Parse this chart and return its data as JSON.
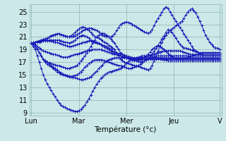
{
  "xlabel": "Température (°c)",
  "background_color": "#cce8e8",
  "line_color": "#1a1ab8",
  "grid_color": "#99bbbb",
  "x_tick_positions": [
    0,
    24,
    48,
    72,
    95
  ],
  "x_tick_labels": [
    "Lun",
    "Mar",
    "Mer",
    "Jeu",
    "V"
  ],
  "ylim": [
    8.5,
    26.2
  ],
  "xlim": [
    -1,
    96
  ],
  "y_ticks": [
    9,
    11,
    13,
    15,
    17,
    19,
    21,
    23,
    25
  ],
  "series": [
    [
      20.0,
      20.0,
      19.8,
      19.5,
      19.2,
      19.0,
      18.8,
      18.7,
      18.6,
      18.5,
      18.4,
      18.3,
      18.2,
      18.1,
      18.0,
      17.9,
      17.8,
      17.8,
      17.8,
      17.9,
      18.0,
      18.1,
      18.2,
      18.3,
      18.4,
      18.5,
      18.6,
      18.7,
      18.8,
      18.8,
      18.9,
      19.0,
      19.0,
      19.0,
      19.0,
      19.0,
      18.9,
      18.8,
      18.7,
      18.6,
      18.5,
      18.4,
      18.3,
      18.2,
      18.1,
      18.0,
      17.9,
      17.8,
      17.7,
      17.6,
      17.5,
      17.5,
      17.6,
      17.7,
      17.8,
      17.9,
      18.0,
      18.0,
      18.0,
      18.0,
      18.0,
      18.0,
      18.0,
      18.0,
      18.0,
      18.0,
      18.0,
      18.0,
      18.0,
      18.0,
      18.0,
      18.0,
      18.0,
      18.0,
      18.0,
      18.0,
      18.0,
      18.0,
      18.0,
      18.0,
      18.0,
      18.0,
      18.0,
      18.0,
      18.0,
      18.0,
      18.0,
      18.0,
      18.0,
      18.0,
      18.0,
      18.0,
      18.0,
      18.0,
      18.0,
      18.0
    ],
    [
      20.0,
      19.8,
      19.5,
      19.0,
      18.5,
      18.0,
      17.5,
      17.2,
      17.0,
      16.8,
      16.5,
      16.2,
      16.0,
      15.8,
      15.5,
      15.3,
      15.1,
      15.0,
      14.9,
      14.8,
      14.7,
      14.6,
      14.5,
      14.4,
      14.3,
      14.2,
      14.2,
      14.3,
      14.4,
      14.5,
      14.7,
      15.0,
      15.3,
      15.6,
      16.0,
      16.3,
      16.6,
      17.0,
      17.2,
      17.4,
      17.5,
      17.6,
      17.7,
      17.7,
      17.7,
      17.7,
      17.7,
      17.7,
      17.7,
      17.7,
      17.7,
      17.7,
      17.7,
      17.7,
      17.7,
      17.7,
      17.7,
      17.7,
      17.7,
      17.7,
      17.7,
      17.7,
      17.7,
      17.7,
      17.7,
      17.7,
      17.7,
      17.7,
      17.7,
      17.7,
      17.7,
      17.7,
      17.7,
      17.7,
      17.7,
      17.7,
      17.7,
      17.7,
      17.7,
      17.7,
      17.7,
      17.7,
      17.7,
      17.7,
      17.7,
      17.7,
      17.7,
      17.7,
      17.7,
      17.7,
      17.7,
      17.7,
      17.7,
      17.7,
      17.7,
      17.7
    ],
    [
      20.0,
      19.5,
      19.0,
      18.0,
      17.0,
      16.0,
      15.0,
      14.2,
      13.5,
      13.0,
      12.5,
      12.0,
      11.5,
      11.0,
      10.5,
      10.2,
      10.0,
      9.8,
      9.6,
      9.5,
      9.4,
      9.3,
      9.2,
      9.2,
      9.3,
      9.5,
      9.8,
      10.2,
      10.7,
      11.2,
      11.8,
      12.4,
      13.0,
      13.5,
      14.0,
      14.4,
      14.7,
      15.0,
      15.2,
      15.4,
      15.5,
      15.6,
      15.7,
      15.8,
      15.9,
      16.0,
      16.2,
      16.5,
      16.8,
      17.1,
      17.4,
      17.5,
      17.5,
      17.5,
      17.5,
      17.5,
      17.5,
      17.5,
      17.5,
      17.5,
      17.5,
      17.5,
      17.5,
      17.5,
      17.5,
      17.5,
      17.5,
      17.5,
      17.5,
      17.5,
      17.5,
      17.5,
      17.5,
      17.5,
      17.5,
      17.5,
      17.5,
      17.5,
      17.5,
      17.5,
      17.5,
      17.5,
      17.5,
      17.5,
      17.5,
      17.5,
      17.5,
      17.5,
      17.5,
      17.5,
      17.5,
      17.5,
      17.5,
      17.5,
      17.5,
      17.5
    ],
    [
      20.0,
      19.8,
      19.5,
      19.0,
      18.5,
      18.0,
      17.5,
      17.2,
      17.0,
      16.9,
      16.8,
      16.7,
      16.6,
      16.5,
      16.4,
      16.3,
      16.2,
      16.1,
      16.0,
      16.0,
      16.1,
      16.2,
      16.3,
      16.5,
      16.8,
      17.2,
      17.6,
      18.0,
      18.5,
      19.0,
      19.5,
      20.0,
      20.5,
      21.0,
      21.3,
      21.5,
      21.6,
      21.5,
      21.3,
      21.0,
      20.7,
      20.4,
      20.0,
      19.5,
      19.0,
      18.5,
      18.2,
      18.0,
      17.8,
      17.6,
      17.4,
      17.3,
      17.2,
      17.2,
      17.3,
      17.4,
      17.5,
      17.7,
      18.0,
      18.3,
      18.6,
      19.0,
      19.3,
      19.5,
      19.6,
      19.5,
      19.3,
      19.0,
      18.7,
      18.4,
      18.1,
      17.9,
      17.7,
      17.6,
      17.5,
      17.5,
      17.5,
      17.6,
      17.7,
      17.8,
      17.9,
      18.0,
      18.1,
      18.2,
      18.3,
      18.4,
      18.5,
      18.5,
      18.5,
      18.5,
      18.5,
      18.5,
      18.5,
      18.5,
      18.5,
      18.5
    ],
    [
      20.0,
      20.1,
      20.2,
      20.3,
      20.4,
      20.5,
      20.6,
      20.7,
      20.8,
      21.0,
      21.2,
      21.3,
      21.4,
      21.5,
      21.5,
      21.4,
      21.3,
      21.2,
      21.1,
      21.0,
      21.0,
      21.1,
      21.2,
      21.4,
      21.6,
      21.8,
      22.0,
      22.2,
      22.3,
      22.4,
      22.4,
      22.3,
      22.2,
      22.0,
      21.8,
      21.5,
      21.3,
      21.2,
      21.1,
      21.0,
      21.0,
      21.2,
      21.5,
      22.0,
      22.5,
      23.0,
      23.2,
      23.3,
      23.4,
      23.3,
      23.2,
      23.0,
      22.8,
      22.6,
      22.4,
      22.2,
      22.0,
      21.8,
      21.7,
      21.6,
      21.8,
      22.2,
      22.8,
      23.5,
      24.0,
      24.5,
      25.0,
      25.5,
      25.8,
      25.5,
      25.0,
      24.5,
      24.0,
      23.5,
      23.0,
      22.5,
      22.0,
      21.5,
      21.0,
      20.5,
      20.0,
      19.5,
      19.0,
      18.8,
      18.6,
      18.4,
      18.2,
      18.0,
      18.0,
      18.0,
      18.0,
      18.0,
      18.0,
      18.0,
      18.0,
      18.0
    ],
    [
      20.0,
      20.1,
      20.2,
      20.3,
      20.4,
      20.5,
      20.6,
      20.7,
      20.8,
      21.0,
      21.2,
      21.3,
      21.4,
      21.5,
      21.5,
      21.4,
      21.3,
      21.2,
      21.1,
      21.0,
      21.2,
      21.4,
      21.7,
      22.0,
      22.3,
      22.5,
      22.6,
      22.5,
      22.3,
      22.0,
      21.7,
      21.4,
      21.1,
      21.0,
      20.8,
      20.6,
      20.4,
      20.2,
      20.0,
      19.7,
      19.5,
      19.2,
      19.0,
      18.5,
      18.0,
      17.5,
      17.2,
      17.0,
      16.9,
      16.8,
      16.7,
      16.6,
      16.5,
      16.4,
      16.3,
      16.2,
      16.1,
      16.0,
      15.9,
      15.8,
      16.0,
      16.5,
      17.2,
      18.0,
      18.8,
      19.5,
      20.2,
      20.8,
      21.3,
      21.7,
      22.0,
      22.3,
      22.5,
      22.8,
      23.0,
      23.3,
      23.5,
      24.0,
      24.5,
      25.0,
      25.3,
      25.5,
      25.2,
      24.8,
      24.2,
      23.5,
      22.8,
      22.0,
      21.3,
      20.7,
      20.2,
      19.8,
      19.5,
      19.3,
      19.2,
      19.0
    ],
    [
      20.0,
      20.0,
      20.1,
      20.2,
      20.3,
      20.4,
      20.5,
      20.5,
      20.5,
      20.5,
      20.5,
      20.5,
      20.5,
      20.5,
      20.5,
      20.4,
      20.3,
      20.2,
      20.1,
      20.0,
      20.1,
      20.3,
      20.5,
      20.8,
      21.0,
      21.2,
      21.3,
      21.2,
      21.0,
      20.8,
      20.5,
      20.3,
      20.1,
      20.0,
      19.9,
      19.8,
      19.7,
      19.6,
      19.5,
      19.3,
      19.0,
      18.8,
      18.5,
      18.3,
      18.1,
      18.0,
      17.9,
      17.8,
      17.7,
      17.6,
      17.5,
      17.4,
      17.3,
      17.2,
      17.1,
      17.0,
      17.1,
      17.2,
      17.3,
      17.5,
      17.8,
      18.2,
      18.7,
      19.2,
      19.7,
      20.2,
      20.7,
      21.2,
      21.7,
      22.2,
      22.0,
      21.7,
      21.3,
      20.8,
      20.3,
      19.8,
      19.5,
      19.3,
      19.2,
      19.1,
      19.0,
      18.9,
      18.8,
      18.7,
      18.6,
      18.5,
      18.5,
      18.5,
      18.5,
      18.5,
      18.5,
      18.5,
      18.5,
      18.5,
      18.5,
      18.5
    ],
    [
      20.0,
      20.0,
      20.1,
      20.2,
      20.2,
      20.3,
      20.4,
      20.4,
      20.4,
      20.4,
      20.4,
      20.3,
      20.2,
      20.1,
      20.0,
      19.9,
      19.8,
      19.7,
      19.6,
      19.5,
      19.5,
      19.6,
      19.7,
      19.8,
      19.9,
      20.0,
      20.1,
      20.2,
      20.3,
      20.4,
      20.4,
      20.4,
      20.3,
      20.2,
      20.0,
      19.8,
      19.6,
      19.4,
      19.2,
      19.0,
      18.8,
      18.7,
      18.6,
      18.5,
      18.4,
      18.3,
      18.2,
      18.1,
      18.0,
      17.9,
      17.8,
      17.7,
      17.6,
      17.6,
      17.6,
      17.6,
      17.7,
      17.8,
      17.9,
      18.0,
      18.1,
      18.2,
      18.3,
      18.4,
      18.5,
      18.6,
      18.7,
      18.8,
      18.8,
      18.8,
      18.8,
      18.8,
      18.8,
      18.8,
      18.8,
      18.8,
      18.7,
      18.6,
      18.5,
      18.4,
      18.3,
      18.2,
      18.2,
      18.2,
      18.2,
      18.2,
      18.2,
      18.2,
      18.2,
      18.2,
      18.2,
      18.2,
      18.2,
      18.2,
      18.2,
      18.2
    ],
    [
      20.0,
      19.8,
      19.5,
      19.0,
      18.5,
      18.0,
      17.5,
      17.0,
      16.7,
      16.5,
      16.3,
      16.0,
      15.8,
      15.5,
      15.3,
      15.1,
      15.0,
      14.9,
      14.8,
      14.7,
      14.7,
      14.8,
      14.9,
      15.0,
      15.2,
      15.5,
      15.8,
      16.2,
      16.5,
      16.8,
      17.0,
      17.2,
      17.3,
      17.4,
      17.4,
      17.4,
      17.3,
      17.2,
      17.1,
      17.0,
      16.9,
      16.8,
      16.7,
      16.6,
      16.5,
      16.4,
      16.3,
      16.2,
      16.1,
      16.0,
      16.0,
      16.1,
      16.2,
      16.3,
      16.5,
      16.7,
      16.9,
      17.2,
      17.5,
      17.7,
      17.8,
      17.8,
      17.8,
      17.8,
      17.7,
      17.6,
      17.5,
      17.4,
      17.3,
      17.2,
      17.2,
      17.2,
      17.2,
      17.2,
      17.2,
      17.2,
      17.2,
      17.2,
      17.2,
      17.2,
      17.2,
      17.2,
      17.2,
      17.2,
      17.2,
      17.2,
      17.2,
      17.2,
      17.2,
      17.2,
      17.2,
      17.2,
      17.2,
      17.2,
      17.2,
      17.2
    ]
  ]
}
